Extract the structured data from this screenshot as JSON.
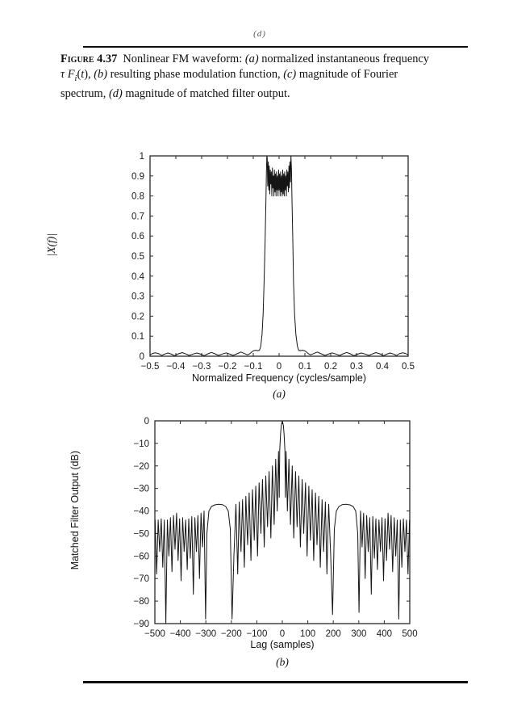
{
  "page": {
    "top_panel_label": "(d)",
    "caption": {
      "lines": [
        [
          {
            "t": "Figure 4.37",
            "s": "figure-label"
          },
          {
            "t": "Nonlinear FM waveform: ",
            "s": ""
          },
          {
            "t": "(a)",
            "s": "i"
          },
          {
            "t": " normalized instantaneous frequency",
            "s": ""
          }
        ],
        [
          {
            "t": "τ F",
            "s": "i"
          },
          {
            "t": "i",
            "s": "sub"
          },
          {
            "t": "(",
            "s": ""
          },
          {
            "t": "t",
            "s": "i"
          },
          {
            "t": "), ",
            "s": ""
          },
          {
            "t": "(b)",
            "s": "i"
          },
          {
            "t": " resulting phase modulation function, ",
            "s": ""
          },
          {
            "t": "(c)",
            "s": "i"
          },
          {
            "t": " magnitude of Fourier",
            "s": ""
          }
        ],
        [
          {
            "t": "spectrum, ",
            "s": ""
          },
          {
            "t": "(d)",
            "s": "i"
          },
          {
            "t": " magnitude of matched filter output.",
            "s": ""
          }
        ]
      ]
    }
  },
  "chart_data": [
    {
      "type": "line",
      "title": "",
      "xlabel": "Normalized Frequency (cycles/sample)",
      "ylabel": "|X(f)|",
      "panel_label": "(a)",
      "xlim": [
        -0.5,
        0.5
      ],
      "ylim": [
        0,
        1
      ],
      "grid": false,
      "legend": "none",
      "axis_color": "#2a2a2a",
      "line_color": "#151515",
      "xticks": [
        -0.5,
        -0.4,
        -0.3,
        -0.2,
        -0.1,
        0,
        0.1,
        0.2,
        0.3,
        0.4,
        0.5
      ],
      "xtick_labels": [
        "−0.5",
        "−0.4",
        "−0.3",
        "−0.2",
        "−0.1",
        "0",
        "0.1",
        "0.2",
        "0.3",
        "0.4",
        "0.5"
      ],
      "yticks": [
        0,
        0.1,
        0.2,
        0.3,
        0.4,
        0.5,
        0.6,
        0.7,
        0.8,
        0.9,
        1
      ],
      "ytick_labels": [
        "0",
        "0.1",
        "0.2",
        "0.3",
        "0.4",
        "0.5",
        "0.6",
        "0.7",
        "0.8",
        "0.9",
        "1"
      ],
      "points": [
        [
          -0.5,
          0.006
        ],
        [
          -0.49,
          0.014
        ],
        [
          -0.478,
          0.017
        ],
        [
          -0.465,
          0.012
        ],
        [
          -0.455,
          0.004
        ],
        [
          -0.443,
          0.011
        ],
        [
          -0.43,
          0.016
        ],
        [
          -0.417,
          0.01
        ],
        [
          -0.405,
          0.003
        ],
        [
          -0.39,
          0.012
        ],
        [
          -0.375,
          0.018
        ],
        [
          -0.36,
          0.011
        ],
        [
          -0.348,
          0.004
        ],
        [
          -0.333,
          0.011
        ],
        [
          -0.318,
          0.016
        ],
        [
          -0.303,
          0.01
        ],
        [
          -0.29,
          0.003
        ],
        [
          -0.276,
          0.012
        ],
        [
          -0.262,
          0.019
        ],
        [
          -0.248,
          0.012
        ],
        [
          -0.235,
          0.004
        ],
        [
          -0.22,
          0.011
        ],
        [
          -0.205,
          0.017
        ],
        [
          -0.19,
          0.01
        ],
        [
          -0.178,
          0.004
        ],
        [
          -0.163,
          0.012
        ],
        [
          -0.148,
          0.021
        ],
        [
          -0.133,
          0.013
        ],
        [
          -0.122,
          0.007
        ],
        [
          -0.113,
          0.013
        ],
        [
          -0.105,
          0.022
        ],
        [
          -0.098,
          0.028
        ],
        [
          -0.09,
          0.03
        ],
        [
          -0.082,
          0.028
        ],
        [
          -0.076,
          0.03
        ],
        [
          -0.071,
          0.05
        ],
        [
          -0.066,
          0.11
        ],
        [
          -0.062,
          0.21
        ],
        [
          -0.058,
          0.37
        ],
        [
          -0.054,
          0.58
        ],
        [
          -0.051,
          0.78
        ],
        [
          -0.049,
          0.92
        ],
        [
          -0.0475,
          1.0
        ],
        [
          -0.046,
          0.99
        ],
        [
          -0.044,
          0.85
        ],
        [
          -0.042,
          0.97
        ],
        [
          -0.04,
          0.83
        ],
        [
          -0.038,
          0.95
        ],
        [
          -0.036,
          0.81
        ],
        [
          -0.034,
          0.93
        ],
        [
          -0.032,
          0.86
        ],
        [
          -0.03,
          0.92
        ],
        [
          -0.028,
          0.8
        ],
        [
          -0.026,
          0.94
        ],
        [
          -0.024,
          0.84
        ],
        [
          -0.022,
          0.9
        ],
        [
          -0.02,
          0.8
        ],
        [
          -0.018,
          0.93
        ],
        [
          -0.016,
          0.82
        ],
        [
          -0.014,
          0.91
        ],
        [
          -0.012,
          0.8
        ],
        [
          -0.01,
          0.92
        ],
        [
          -0.008,
          0.83
        ],
        [
          -0.006,
          0.9
        ],
        [
          -0.004,
          0.8
        ],
        [
          -0.002,
          0.93
        ],
        [
          0.0,
          0.83
        ],
        [
          0.002,
          0.91
        ],
        [
          0.004,
          0.8
        ],
        [
          0.006,
          0.92
        ],
        [
          0.008,
          0.82
        ],
        [
          0.01,
          0.9
        ],
        [
          0.012,
          0.8
        ],
        [
          0.014,
          0.93
        ],
        [
          0.016,
          0.81
        ],
        [
          0.018,
          0.91
        ],
        [
          0.02,
          0.8
        ],
        [
          0.022,
          0.92
        ],
        [
          0.024,
          0.83
        ],
        [
          0.026,
          0.9
        ],
        [
          0.028,
          0.8
        ],
        [
          0.03,
          0.93
        ],
        [
          0.032,
          0.85
        ],
        [
          0.034,
          0.92
        ],
        [
          0.036,
          0.82
        ],
        [
          0.038,
          0.95
        ],
        [
          0.04,
          0.84
        ],
        [
          0.042,
          0.97
        ],
        [
          0.044,
          0.87
        ],
        [
          0.046,
          1.0
        ],
        [
          0.048,
          0.93
        ],
        [
          0.05,
          0.78
        ],
        [
          0.053,
          0.58
        ],
        [
          0.056,
          0.37
        ],
        [
          0.06,
          0.21
        ],
        [
          0.065,
          0.11
        ],
        [
          0.071,
          0.05
        ],
        [
          0.076,
          0.03
        ],
        [
          0.082,
          0.028
        ],
        [
          0.09,
          0.03
        ],
        [
          0.098,
          0.028
        ],
        [
          0.105,
          0.022
        ],
        [
          0.113,
          0.013
        ],
        [
          0.122,
          0.007
        ],
        [
          0.133,
          0.013
        ],
        [
          0.148,
          0.021
        ],
        [
          0.163,
          0.012
        ],
        [
          0.178,
          0.004
        ],
        [
          0.19,
          0.01
        ],
        [
          0.205,
          0.017
        ],
        [
          0.22,
          0.011
        ],
        [
          0.235,
          0.004
        ],
        [
          0.248,
          0.012
        ],
        [
          0.262,
          0.019
        ],
        [
          0.276,
          0.012
        ],
        [
          0.29,
          0.003
        ],
        [
          0.303,
          0.01
        ],
        [
          0.318,
          0.016
        ],
        [
          0.333,
          0.011
        ],
        [
          0.348,
          0.004
        ],
        [
          0.36,
          0.011
        ],
        [
          0.375,
          0.018
        ],
        [
          0.39,
          0.012
        ],
        [
          0.405,
          0.003
        ],
        [
          0.417,
          0.01
        ],
        [
          0.43,
          0.016
        ],
        [
          0.443,
          0.011
        ],
        [
          0.455,
          0.004
        ],
        [
          0.465,
          0.012
        ],
        [
          0.478,
          0.017
        ],
        [
          0.49,
          0.014
        ],
        [
          0.5,
          0.006
        ]
      ]
    },
    {
      "type": "line",
      "title": "",
      "xlabel": "Lag (samples)",
      "ylabel": "Matched Filter Output (dB)",
      "panel_label": "(b)",
      "xlim": [
        -500,
        500
      ],
      "ylim": [
        -90,
        0
      ],
      "grid": false,
      "legend": "none",
      "axis_color": "#2a2a2a",
      "line_color": "#151515",
      "xticks": [
        -500,
        -400,
        -300,
        -200,
        -100,
        0,
        100,
        200,
        300,
        400,
        500
      ],
      "xtick_labels": [
        "−500",
        "−400",
        "−300",
        "−200",
        "−100",
        "0",
        "100",
        "200",
        "300",
        "400",
        "500"
      ],
      "yticks": [
        0,
        -10,
        -20,
        -30,
        -40,
        -50,
        -60,
        -70,
        -80,
        -90
      ],
      "ytick_labels": [
        "0",
        "−10",
        "−20",
        "−30",
        "−40",
        "−50",
        "−60",
        "−70",
        "−80",
        "−90"
      ],
      "points": [
        [
          -500,
          -46
        ],
        [
          -499,
          -44
        ],
        [
          -493,
          -68
        ],
        [
          -487,
          -44
        ],
        [
          -481,
          -58
        ],
        [
          -475,
          -43.5
        ],
        [
          -469,
          -65
        ],
        [
          -463,
          -44
        ],
        [
          -457,
          -90
        ],
        [
          -451,
          -44
        ],
        [
          -445,
          -60
        ],
        [
          -439,
          -43
        ],
        [
          -433,
          -67
        ],
        [
          -427,
          -42
        ],
        [
          -421,
          -57
        ],
        [
          -415,
          -41
        ],
        [
          -409,
          -62
        ],
        [
          -403,
          -43.5
        ],
        [
          -397,
          -71
        ],
        [
          -391,
          -43
        ],
        [
          -385,
          -58
        ],
        [
          -379,
          -44
        ],
        [
          -373,
          -66
        ],
        [
          -367,
          -43.5
        ],
        [
          -361,
          -61
        ],
        [
          -355,
          -42.5
        ],
        [
          -349,
          -77
        ],
        [
          -343,
          -43
        ],
        [
          -337,
          -58
        ],
        [
          -331,
          -42
        ],
        [
          -325,
          -70
        ],
        [
          -319,
          -41
        ],
        [
          -313,
          -56
        ],
        [
          -307,
          -40
        ],
        [
          -301,
          -88
        ],
        [
          -296,
          -50
        ],
        [
          -288,
          -40
        ],
        [
          -278,
          -38
        ],
        [
          -265,
          -37.3
        ],
        [
          -250,
          -37
        ],
        [
          -235,
          -37.2
        ],
        [
          -222,
          -38
        ],
        [
          -212,
          -40
        ],
        [
          -204,
          -48
        ],
        [
          -197,
          -88
        ],
        [
          -190,
          -60
        ],
        [
          -182,
          -37
        ],
        [
          -175,
          -68
        ],
        [
          -169,
          -36
        ],
        [
          -162,
          -58
        ],
        [
          -156,
          -35
        ],
        [
          -149,
          -65
        ],
        [
          -143,
          -33.5
        ],
        [
          -136,
          -55
        ],
        [
          -130,
          -32
        ],
        [
          -123,
          -62
        ],
        [
          -117,
          -30.5
        ],
        [
          -110,
          -53
        ],
        [
          -104,
          -29
        ],
        [
          -97,
          -60
        ],
        [
          -91,
          -27.5
        ],
        [
          -84,
          -50
        ],
        [
          -78,
          -26
        ],
        [
          -71,
          -56
        ],
        [
          -65,
          -24.5
        ],
        [
          -58,
          -47
        ],
        [
          -52,
          -22.5
        ],
        [
          -45,
          -52
        ],
        [
          -39,
          -20
        ],
        [
          -32,
          -46
        ],
        [
          -26,
          -17
        ],
        [
          -20,
          -40
        ],
        [
          -15,
          -13.5
        ],
        [
          -12,
          -34
        ],
        [
          -10,
          -13
        ],
        [
          -7,
          -6
        ],
        [
          -4,
          -2
        ],
        [
          0,
          0
        ],
        [
          4,
          -2
        ],
        [
          7,
          -6
        ],
        [
          10,
          -13
        ],
        [
          12,
          -34
        ],
        [
          15,
          -13.5
        ],
        [
          20,
          -40
        ],
        [
          26,
          -17
        ],
        [
          32,
          -46
        ],
        [
          39,
          -20
        ],
        [
          45,
          -52
        ],
        [
          52,
          -22.5
        ],
        [
          58,
          -47
        ],
        [
          65,
          -24.5
        ],
        [
          71,
          -56
        ],
        [
          78,
          -26
        ],
        [
          84,
          -50
        ],
        [
          91,
          -27.5
        ],
        [
          97,
          -60
        ],
        [
          104,
          -29
        ],
        [
          110,
          -53
        ],
        [
          117,
          -30.5
        ],
        [
          123,
          -62
        ],
        [
          130,
          -32
        ],
        [
          136,
          -55
        ],
        [
          143,
          -33.5
        ],
        [
          149,
          -65
        ],
        [
          156,
          -35
        ],
        [
          162,
          -58
        ],
        [
          169,
          -36
        ],
        [
          175,
          -68
        ],
        [
          182,
          -37
        ],
        [
          190,
          -60
        ],
        [
          197,
          -86
        ],
        [
          204,
          -48
        ],
        [
          212,
          -40
        ],
        [
          222,
          -38
        ],
        [
          235,
          -37.2
        ],
        [
          250,
          -37
        ],
        [
          265,
          -37.3
        ],
        [
          278,
          -38
        ],
        [
          288,
          -40
        ],
        [
          296,
          -50
        ],
        [
          301,
          -85
        ],
        [
          307,
          -40
        ],
        [
          313,
          -56
        ],
        [
          319,
          -41
        ],
        [
          325,
          -70
        ],
        [
          331,
          -42
        ],
        [
          337,
          -58
        ],
        [
          343,
          -43
        ],
        [
          349,
          -77
        ],
        [
          355,
          -42.5
        ],
        [
          361,
          -61
        ],
        [
          367,
          -43.5
        ],
        [
          373,
          -66
        ],
        [
          379,
          -44
        ],
        [
          385,
          -58
        ],
        [
          391,
          -43
        ],
        [
          397,
          -71
        ],
        [
          403,
          -43.5
        ],
        [
          409,
          -62
        ],
        [
          415,
          -41
        ],
        [
          421,
          -57
        ],
        [
          427,
          -42
        ],
        [
          433,
          -67
        ],
        [
          439,
          -43
        ],
        [
          445,
          -60
        ],
        [
          451,
          -44
        ],
        [
          457,
          -88
        ],
        [
          463,
          -44
        ],
        [
          469,
          -65
        ],
        [
          475,
          -43.5
        ],
        [
          481,
          -58
        ],
        [
          487,
          -44
        ],
        [
          493,
          -68
        ],
        [
          499,
          -44
        ],
        [
          500,
          -46
        ]
      ]
    }
  ]
}
